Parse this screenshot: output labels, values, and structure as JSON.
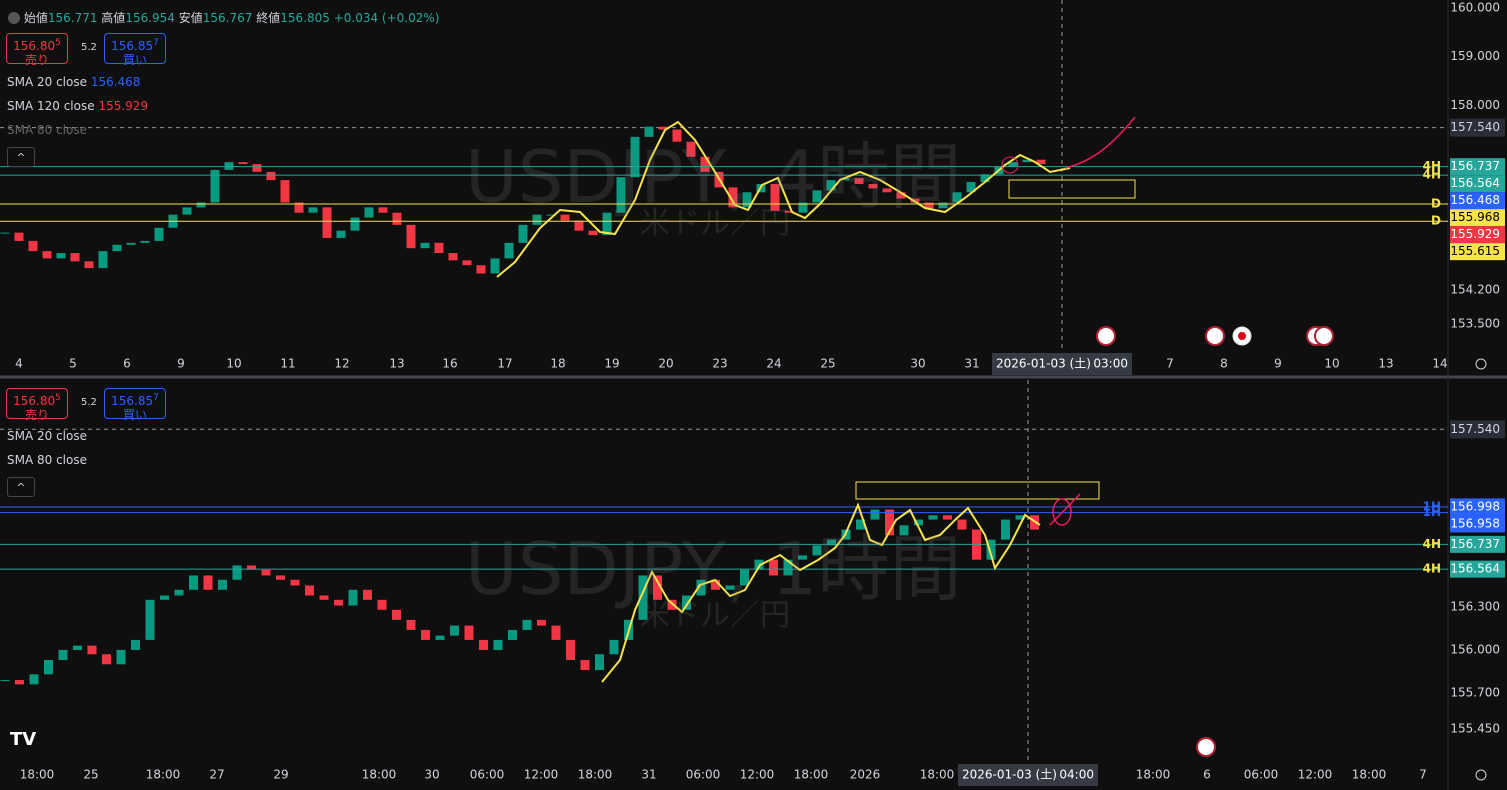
{
  "header": {
    "open_label": "始値",
    "open": "156.771",
    "high_label": "高値",
    "high": "156.954",
    "low_label": "安値",
    "low": "156.767",
    "close_label": "終値",
    "close": "156.805",
    "change": "+0.034 (+0.02%)"
  },
  "panels": [
    {
      "watermark": "USDJPY, 4時間",
      "watermark_sub": "米ドル／円",
      "sell_price": "156.80",
      "sell_digit": "5",
      "sell_label": "売り",
      "spread": "5.2",
      "buy_price": "156.85",
      "buy_digit": "7",
      "buy_label": "買い",
      "indicators": [
        {
          "name": "SMA 20 close",
          "value": 156.468,
          "color": "#2962ff"
        },
        {
          "name": "SMA 120 close",
          "value": 155.929,
          "color": "#f23645"
        },
        {
          "name": "SMA 80 close"
        }
      ],
      "range": [
        160.165,
        152.966
      ],
      "ticks": [
        {
          "value": 160,
          "label": "160.000"
        },
        {
          "value": 159,
          "label": "159.000"
        },
        {
          "value": 158,
          "label": "158.000"
        },
        {
          "value": 154.2,
          "label": "154.200"
        },
        {
          "value": 153.5,
          "label": "153.500"
        }
      ],
      "marked_level": {
        "value": 157.54,
        "label": "157.540"
      },
      "levels": [
        {
          "value": 156.737,
          "tag": "4H",
          "color": "#26a69a"
        },
        {
          "value": 156.564,
          "tag": "4H",
          "color": "#26a69a"
        },
        {
          "value": 155.968,
          "tag": "D",
          "color": "#f7e34b"
        },
        {
          "value": 155.615,
          "tag": "D",
          "color": "#f7e34b"
        }
      ],
      "closes": [
        155.38,
        155.21,
        155.0,
        154.85,
        154.96,
        154.79,
        154.65,
        155.0,
        155.13,
        155.17,
        155.21,
        155.48,
        155.75,
        155.9,
        156.0,
        156.67,
        156.83,
        156.79,
        156.63,
        156.46,
        156.0,
        155.79,
        155.9,
        155.27,
        155.42,
        155.69,
        155.9,
        155.79,
        155.54,
        155.06,
        155.17,
        154.96,
        154.81,
        154.71,
        154.54,
        154.85,
        155.17,
        155.54,
        155.75,
        155.75,
        155.63,
        155.42,
        155.33,
        155.79,
        156.52,
        157.35,
        157.56,
        157.5,
        157.25,
        156.94,
        156.63,
        156.31,
        155.9,
        156.21,
        156.38,
        155.83,
        155.79,
        156.0,
        156.25,
        156.46,
        156.5,
        156.38,
        156.29,
        156.21,
        156.08,
        156.0,
        155.88,
        156.0,
        156.21,
        156.42,
        156.58,
        156.73,
        156.83,
        156.88,
        156.79
      ],
      "time_labels": [
        "4",
        "5",
        "6",
        "9",
        "10",
        "11",
        "12",
        "13",
        "16",
        "17",
        "18",
        "19",
        "20",
        "23",
        "24",
        "25",
        "30",
        "31",
        "7",
        "8",
        "9",
        "10",
        "13",
        "14"
      ],
      "cursor_date": "2026-01-03 (土)",
      "cursor_time": "03:00"
    },
    {
      "watermark": "USDJPY, 1時間",
      "watermark_sub": "米ドル／円",
      "sell_price": "156.80",
      "sell_digit": "5",
      "sell_label": "売り",
      "spread": "5.2",
      "buy_price": "156.85",
      "buy_digit": "7",
      "buy_label": "買い",
      "indicators": [
        {
          "name": "SMA 20 close"
        },
        {
          "name": "SMA 80 close"
        }
      ],
      "range": [
        157.884,
        155.232
      ],
      "ticks": [
        {
          "value": 156.3,
          "label": "156.300"
        },
        {
          "value": 156,
          "label": "156.000"
        },
        {
          "value": 155.7,
          "label": "155.700"
        },
        {
          "value": 155.45,
          "label": "155.450"
        }
      ],
      "marked_level": {
        "value": 157.54,
        "label": "157.540"
      },
      "levels": [
        {
          "value": 156.998,
          "tag": "1H",
          "color": "#2962ff"
        },
        {
          "value": 156.958,
          "tag": "1H",
          "color": "#2962ff"
        },
        {
          "value": 156.737,
          "tag": "4H",
          "color": "#26a69a"
        },
        {
          "value": 156.564,
          "tag": "4H",
          "color": "#26a69a"
        }
      ],
      "closes": [
        155.79,
        155.76,
        155.83,
        155.93,
        156.0,
        156.03,
        155.97,
        155.9,
        156.0,
        156.07,
        156.35,
        156.38,
        156.42,
        156.52,
        156.42,
        156.49,
        156.59,
        156.56,
        156.52,
        156.49,
        156.45,
        156.38,
        156.35,
        156.31,
        156.42,
        156.35,
        156.28,
        156.21,
        156.14,
        156.07,
        156.1,
        156.17,
        156.07,
        156.0,
        156.07,
        156.14,
        156.21,
        156.17,
        156.07,
        155.93,
        155.86,
        155.97,
        156.07,
        156.21,
        156.52,
        156.35,
        156.28,
        156.38,
        156.49,
        156.42,
        156.45,
        156.56,
        156.63,
        156.52,
        156.63,
        156.66,
        156.73,
        156.77,
        156.84,
        156.91,
        156.98,
        156.8,
        156.87,
        156.91,
        156.94,
        156.91,
        156.84,
        156.63,
        156.77,
        156.91,
        156.94,
        156.84
      ],
      "time_labels": [
        "18:00",
        "25",
        "18:00",
        "27",
        "29",
        "18:00",
        "30",
        "06:00",
        "12:00",
        "18:00",
        "31",
        "06:00",
        "12:00",
        "18:00",
        "2026",
        "18:00",
        "18:00",
        "6",
        "06:00",
        "12:00",
        "18:00",
        "7"
      ],
      "cursor_date": "2026-01-03 (土)",
      "cursor_time": "04:00"
    }
  ]
}
